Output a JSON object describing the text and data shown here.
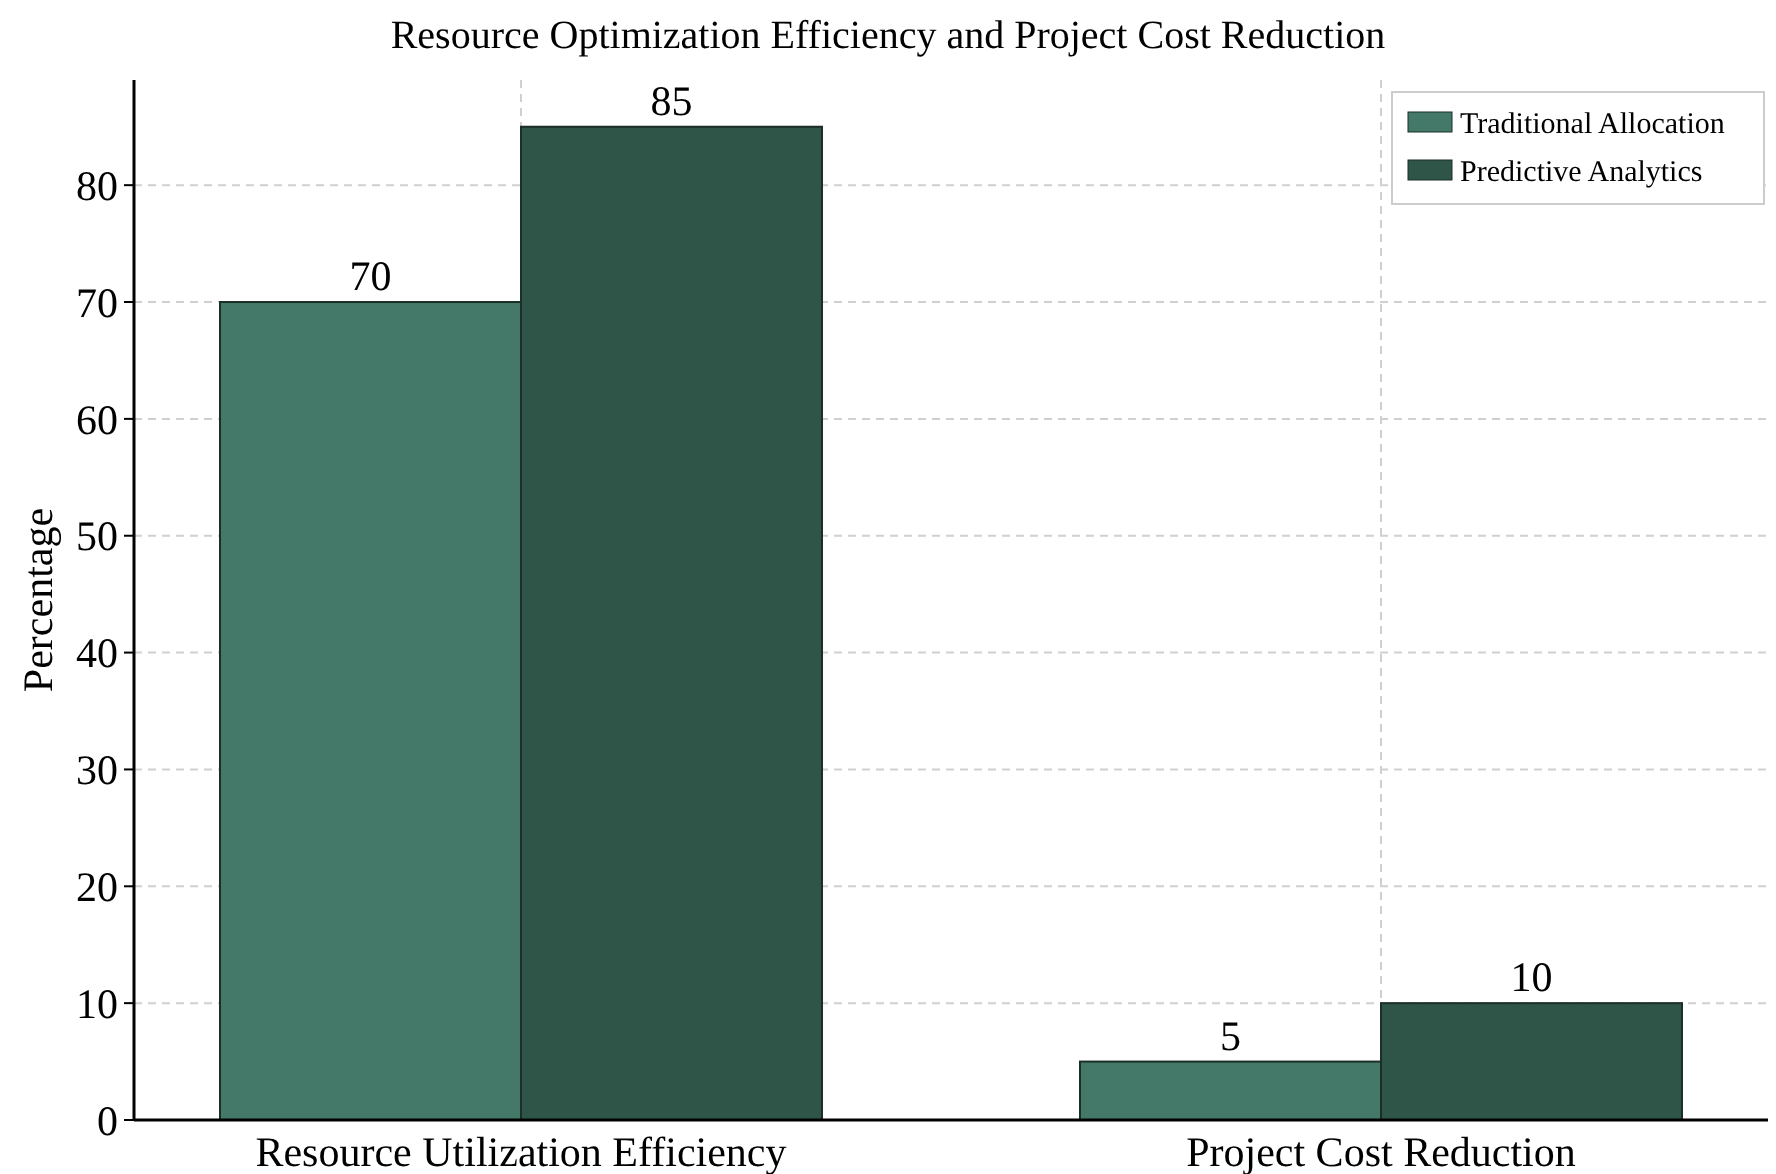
{
  "chart_data": {
    "type": "bar",
    "title": "Resource Optimization Efficiency and Project Cost Reduction",
    "ylabel": "Percentage",
    "categories": [
      "Resource Utilization Efficiency",
      "Project Cost Reduction"
    ],
    "series": [
      {
        "name": "Traditional Allocation",
        "color": "#44796a",
        "values": [
          70,
          5
        ]
      },
      {
        "name": "Predictive Analytics",
        "color": "#2f5448",
        "values": [
          85,
          10
        ]
      }
    ],
    "ylim": [
      0,
      89
    ],
    "yticks": [
      0,
      10,
      20,
      30,
      40,
      50,
      60,
      70,
      80
    ],
    "grid": true,
    "legend": "top right",
    "data_labels": true
  }
}
